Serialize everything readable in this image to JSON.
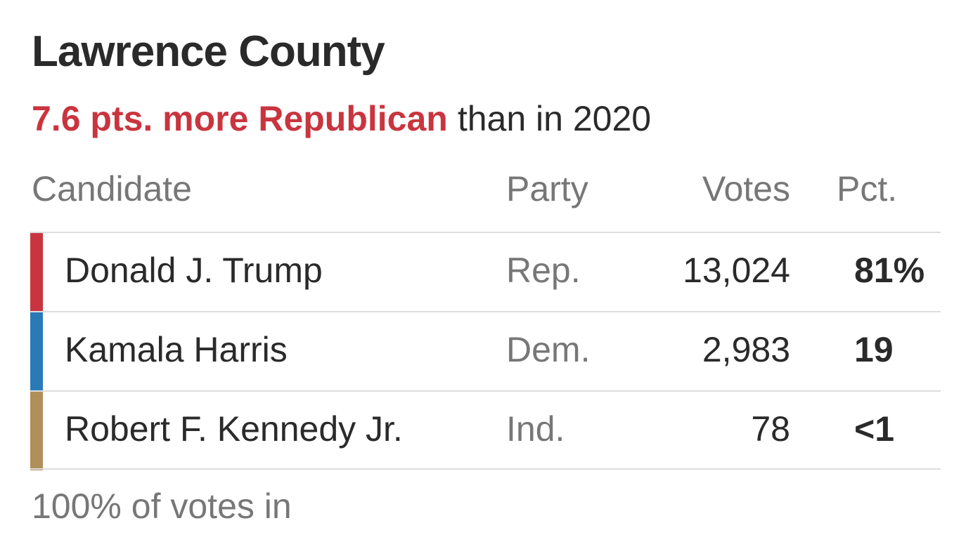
{
  "title": "Lawrence County",
  "subtitle": {
    "highlight": "7.6 pts. more Republican",
    "rest": "than in 2020"
  },
  "table": {
    "header": [
      "Candidate",
      "Party",
      "Votes",
      "Pct."
    ],
    "rows": [
      [
        "Donald J. Trump",
        "Rep.",
        "13,024",
        "81%"
      ],
      [
        "Kamala Harris",
        "Dem.",
        "2,983",
        "19"
      ],
      [
        "Robert F. Kennedy Jr.",
        "Ind.",
        "78",
        "<1"
      ]
    ]
  },
  "footer": "100% of votes in"
}
